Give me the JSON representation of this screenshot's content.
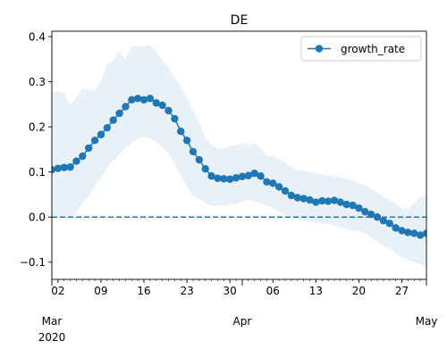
{
  "chart_data": {
    "type": "line",
    "title": "DE",
    "xlabel": "",
    "ylabel": "",
    "x_range": [
      "2020-03-01",
      "2020-05-01"
    ],
    "ylim": [
      -0.138,
      0.412
    ],
    "y_ticks": [
      -0.1,
      0.0,
      0.1,
      0.2,
      0.3,
      0.4
    ],
    "y_tick_labels": [
      "−0.1",
      "0.0",
      "0.1",
      "0.2",
      "0.3",
      "0.4"
    ],
    "x_minor_ticks": [
      {
        "date": "2020-03-02",
        "label": "02"
      },
      {
        "date": "2020-03-09",
        "label": "09"
      },
      {
        "date": "2020-03-16",
        "label": "16"
      },
      {
        "date": "2020-03-23",
        "label": "23"
      },
      {
        "date": "2020-03-30",
        "label": "30"
      },
      {
        "date": "2020-04-06",
        "label": "06"
      },
      {
        "date": "2020-04-13",
        "label": "13"
      },
      {
        "date": "2020-04-20",
        "label": "20"
      },
      {
        "date": "2020-04-27",
        "label": "27"
      }
    ],
    "x_major_ticks": [
      {
        "date": "2020-03-01",
        "label": "Mar",
        "sublabel": "2020"
      },
      {
        "date": "2020-04-01",
        "label": "Apr",
        "sublabel": ""
      },
      {
        "date": "2020-05-01",
        "label": "May",
        "sublabel": ""
      }
    ],
    "legend": {
      "position": "top-right",
      "entries": [
        "growth_rate"
      ]
    },
    "reference_line": {
      "y": 0.0,
      "style": "dashed"
    },
    "colors": {
      "series": "#1f77b4",
      "band": "#dce9f5",
      "reference": "#1f77b4"
    },
    "series": [
      {
        "name": "growth_rate",
        "x": [
          "2020-03-01",
          "2020-03-02",
          "2020-03-03",
          "2020-03-04",
          "2020-03-05",
          "2020-03-06",
          "2020-03-07",
          "2020-03-08",
          "2020-03-09",
          "2020-03-10",
          "2020-03-11",
          "2020-03-12",
          "2020-03-13",
          "2020-03-14",
          "2020-03-15",
          "2020-03-16",
          "2020-03-17",
          "2020-03-18",
          "2020-03-19",
          "2020-03-20",
          "2020-03-21",
          "2020-03-22",
          "2020-03-23",
          "2020-03-24",
          "2020-03-25",
          "2020-03-26",
          "2020-03-27",
          "2020-03-28",
          "2020-03-29",
          "2020-03-30",
          "2020-03-31",
          "2020-04-01",
          "2020-04-02",
          "2020-04-03",
          "2020-04-04",
          "2020-04-05",
          "2020-04-06",
          "2020-04-07",
          "2020-04-08",
          "2020-04-09",
          "2020-04-10",
          "2020-04-11",
          "2020-04-12",
          "2020-04-13",
          "2020-04-14",
          "2020-04-15",
          "2020-04-16",
          "2020-04-17",
          "2020-04-18",
          "2020-04-19",
          "2020-04-20",
          "2020-04-21",
          "2020-04-22",
          "2020-04-23",
          "2020-04-24",
          "2020-04-25",
          "2020-04-26",
          "2020-04-27",
          "2020-04-28",
          "2020-04-29",
          "2020-04-30",
          "2020-05-01"
        ],
        "y": [
          0.105,
          0.108,
          0.11,
          0.111,
          0.124,
          0.135,
          0.153,
          0.17,
          0.183,
          0.198,
          0.215,
          0.23,
          0.245,
          0.26,
          0.263,
          0.26,
          0.263,
          0.253,
          0.248,
          0.236,
          0.218,
          0.19,
          0.17,
          0.145,
          0.127,
          0.107,
          0.091,
          0.086,
          0.085,
          0.084,
          0.087,
          0.09,
          0.092,
          0.097,
          0.091,
          0.078,
          0.075,
          0.067,
          0.058,
          0.048,
          0.043,
          0.041,
          0.038,
          0.033,
          0.036,
          0.035,
          0.037,
          0.033,
          0.028,
          0.026,
          0.02,
          0.012,
          0.006,
          0.0,
          -0.008,
          -0.014,
          -0.024,
          -0.03,
          -0.034,
          -0.036,
          -0.04,
          -0.036
        ],
        "lower": [
          0.0,
          0.0,
          0.0,
          0.0,
          0.01,
          0.03,
          0.045,
          0.07,
          0.085,
          0.11,
          0.125,
          0.14,
          0.153,
          0.165,
          0.173,
          0.178,
          0.175,
          0.165,
          0.155,
          0.14,
          0.118,
          0.09,
          0.068,
          0.048,
          0.04,
          0.032,
          0.025,
          0.025,
          0.026,
          0.028,
          0.03,
          0.035,
          0.038,
          0.035,
          0.03,
          0.025,
          0.018,
          0.012,
          0.005,
          0.0,
          -0.005,
          -0.008,
          -0.01,
          -0.012,
          -0.013,
          -0.015,
          -0.018,
          -0.022,
          -0.025,
          -0.03,
          -0.032,
          -0.036,
          -0.045,
          -0.055,
          -0.063,
          -0.07,
          -0.08,
          -0.09,
          -0.095,
          -0.1,
          -0.105,
          -0.11
        ],
        "upper": [
          0.278,
          0.278,
          0.275,
          0.25,
          0.265,
          0.285,
          0.283,
          0.28,
          0.3,
          0.34,
          0.348,
          0.365,
          0.35,
          0.38,
          0.378,
          0.378,
          0.382,
          0.365,
          0.348,
          0.332,
          0.308,
          0.29,
          0.265,
          0.235,
          0.21,
          0.175,
          0.16,
          0.15,
          0.152,
          0.158,
          0.158,
          0.165,
          0.16,
          0.163,
          0.152,
          0.135,
          0.135,
          0.13,
          0.122,
          0.11,
          0.105,
          0.103,
          0.1,
          0.098,
          0.095,
          0.093,
          0.09,
          0.088,
          0.085,
          0.08,
          0.075,
          0.07,
          0.062,
          0.055,
          0.045,
          0.038,
          0.03,
          0.02,
          0.018,
          0.03,
          0.045,
          0.048
        ]
      }
    ]
  }
}
